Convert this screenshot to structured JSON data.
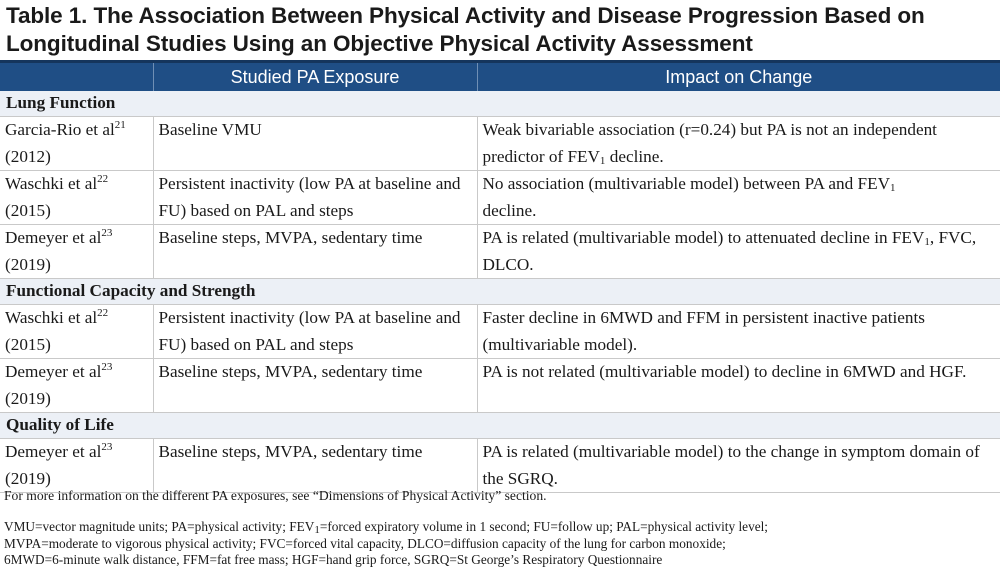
{
  "title": {
    "line1": "Table 1. The Association Between Physical Activity and Disease Progression Based on",
    "line2": "Longitudinal Studies Using an Objective Physical Activity Assessment"
  },
  "header": {
    "col1": "",
    "col2": "Studied PA Exposure",
    "col3": "Impact on Change"
  },
  "sections": {
    "lung": "Lung Function",
    "functional": "Functional Capacity and Strength",
    "qol": "Quality of Life"
  },
  "rows": {
    "r1": {
      "author": "Garcia-Rio et al",
      "ref": "21",
      "year": "(2012)",
      "exposure": "Baseline VMU",
      "impact_a": "Weak bivariable association (r=0.24) but PA is not an independent predictor of FEV",
      "impact_sub": "1",
      "impact_b": " decline."
    },
    "r2": {
      "author": "Waschki et al",
      "ref": "22",
      "year": "(2015)",
      "exposure": "Persistent inactivity (low PA at baseline and FU) based on PAL and steps",
      "impact_a": "No association (multivariable model) between PA and FEV",
      "impact_sub": "1",
      "impact_b": " decline."
    },
    "r3": {
      "author": "Demeyer et al",
      "ref": "23",
      "year": "(2019)",
      "exposure": "Baseline steps, MVPA, sedentary time",
      "impact_a": "PA is related (multivariable model) to attenuated decline in FEV",
      "impact_sub": "1",
      "impact_b": ", FVC, DLCO."
    },
    "r4": {
      "author": "Waschki et al",
      "ref": "22",
      "year": "(2015)",
      "exposure": "Persistent inactivity (low PA at baseline and FU) based on PAL and steps",
      "impact": "Faster decline in 6MWD and FFM in persistent inactive patients (multivariable model)."
    },
    "r5": {
      "author": "Demeyer et al",
      "ref": "23",
      "year": "(2019)",
      "exposure": "Baseline steps, MVPA, sedentary time",
      "impact": "PA is not related (multivariable model) to decline in 6MWD and HGF."
    },
    "r6": {
      "author": "Demeyer et al",
      "ref": "23",
      "year": "(2019)",
      "exposure": "Baseline steps, MVPA, sedentary time",
      "impact": "PA is related (multivariable model) to the change in symptom domain of the SGRQ."
    }
  },
  "footnotes": {
    "info": "For more information on the different PA exposures, see “Dimensions of Physical Activity” section.",
    "abbr_l1a": "VMU=vector magnitude units; PA=physical activity; FEV",
    "abbr_l1sub": "1",
    "abbr_l1b": "=forced expiratory volume in 1 second; FU=follow up; PAL=physical activity level;",
    "abbr_l2": "MVPA=moderate to vigorous physical activity; FVC=forced vital capacity, DLCO=diffusion capacity of the lung for carbon monoxide;",
    "abbr_l3": "6MWD=6-minute walk distance, FFM=fat free mass; HGF=hand grip force, SGRQ=St George’s Respiratory Questionnaire"
  }
}
